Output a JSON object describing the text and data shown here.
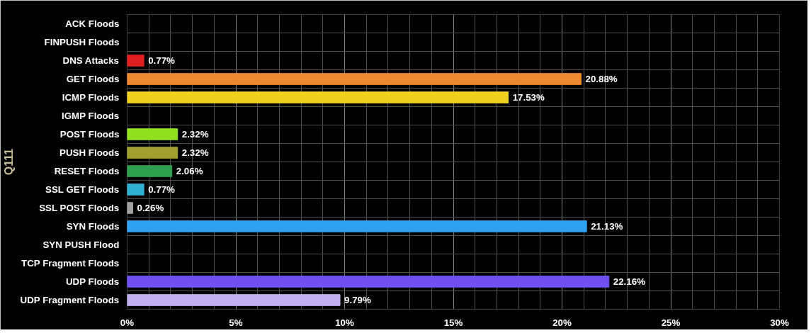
{
  "chart_data": {
    "type": "bar",
    "orientation": "horizontal",
    "ylabel": "Q111",
    "categories": [
      "ACK Floods",
      "FINPUSH Floods",
      "DNS Attacks",
      "GET Floods",
      "ICMP Floods",
      "IGMP Floods",
      "POST Floods",
      "PUSH Floods",
      "RESET Floods",
      "SSL GET Floods",
      "SSL POST Floods",
      "SYN Floods",
      "SYN PUSH Flood",
      "TCP Fragment Floods",
      "UDP Floods",
      "UDP Fragment Floods"
    ],
    "values": [
      null,
      null,
      0.77,
      20.88,
      17.53,
      null,
      2.32,
      2.32,
      2.06,
      0.77,
      0.26,
      21.13,
      null,
      null,
      22.16,
      9.79
    ],
    "colors": [
      "#808080",
      "#808080",
      "#e02020",
      "#f08a30",
      "#f0d020",
      "#808080",
      "#90e020",
      "#a0a030",
      "#30a050",
      "#30b0d0",
      "#a0a0a0",
      "#30a0f0",
      "#808080",
      "#808080",
      "#7050f0",
      "#c0b0f0"
    ],
    "value_labels": [
      null,
      null,
      "0.77%",
      "20.88%",
      "17.53%",
      null,
      "2.32%",
      "2.32%",
      "2.06%",
      "0.77%",
      "0.26%",
      "21.13%",
      null,
      null,
      "22.16%",
      "9.79%"
    ],
    "xlim": [
      0,
      30
    ],
    "xticks": [
      {
        "value": 0,
        "label": "0%"
      },
      {
        "value": 5,
        "label": "5%"
      },
      {
        "value": 10,
        "label": "10%"
      },
      {
        "value": 15,
        "label": "15%"
      },
      {
        "value": 20,
        "label": "20%"
      },
      {
        "value": 25,
        "label": "25%"
      },
      {
        "value": 30,
        "label": "30%"
      }
    ],
    "grid": true
  }
}
